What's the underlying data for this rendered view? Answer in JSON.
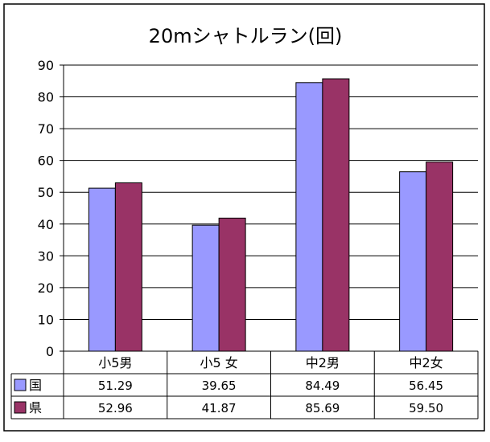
{
  "chart_data": {
    "type": "bar",
    "title": "20mシャトルラン(回)",
    "categories": [
      "小5男",
      "小5 女",
      "中2男",
      "中2女"
    ],
    "series": [
      {
        "name": "国",
        "values": [
          51.29,
          39.65,
          84.49,
          56.45
        ],
        "labels": [
          "51.29",
          "39.65",
          "84.49",
          "56.45"
        ],
        "color": "#9999FF"
      },
      {
        "name": "県",
        "values": [
          52.96,
          41.87,
          85.69,
          59.5
        ],
        "labels": [
          "52.96",
          "41.87",
          "85.69",
          "59.50"
        ],
        "color": "#993366"
      }
    ],
    "ylim": [
      0,
      90
    ],
    "yticks": [
      0,
      10,
      20,
      30,
      40,
      50,
      60,
      70,
      80,
      90
    ],
    "grid": true,
    "legend": "data-table",
    "xlabel": "",
    "ylabel": ""
  }
}
